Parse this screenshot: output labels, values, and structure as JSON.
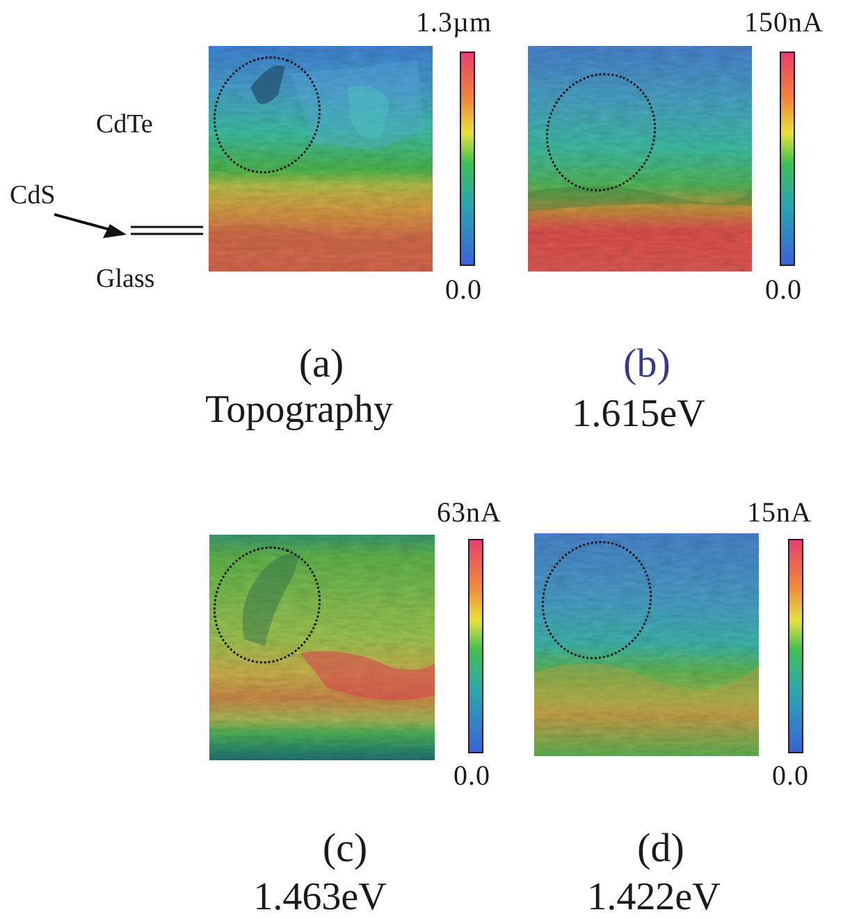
{
  "colors": {
    "b_label": "#3a3a8c",
    "text": "#1a1a1a"
  },
  "labels": {
    "cdte": "CdTe",
    "cds": "CdS",
    "glass": "Glass"
  },
  "panels": [
    {
      "id": "a",
      "tag": "(a)",
      "caption": "Topography",
      "scale_max": "1.3µm",
      "scale_min": "0.0"
    },
    {
      "id": "b",
      "tag": "(b)",
      "caption": "1.615eV",
      "scale_max": "150nA",
      "scale_min": "0.0"
    },
    {
      "id": "c",
      "tag": "(c)",
      "caption": "1.463eV",
      "scale_max": "63nA",
      "scale_min": "0.0"
    },
    {
      "id": "d",
      "tag": "(d)",
      "caption": "1.422eV",
      "scale_max": "15nA",
      "scale_min": "0.0"
    }
  ]
}
